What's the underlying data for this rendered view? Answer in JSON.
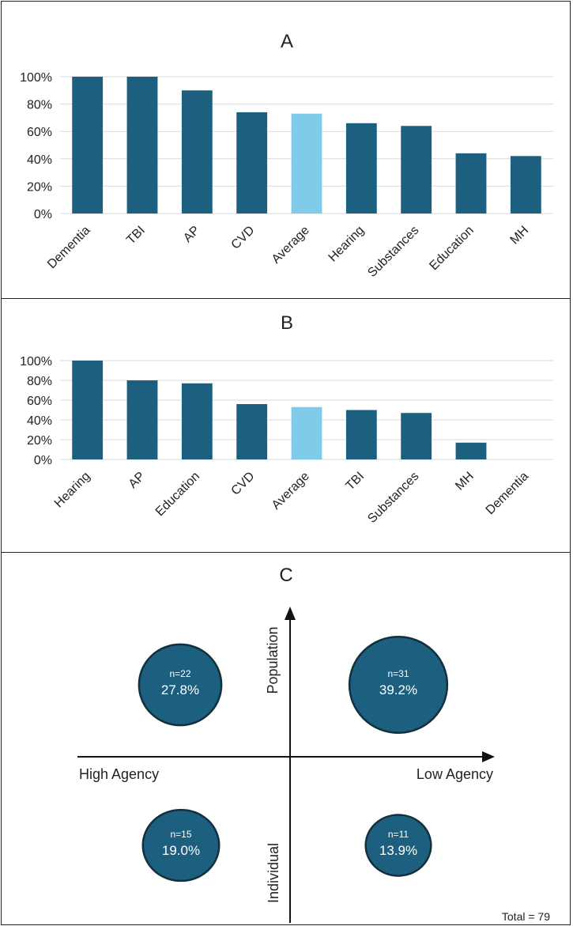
{
  "colors": {
    "bar": "#1c5f7e",
    "highlight": "#7fcbe9",
    "bubble": "#1c5f7e",
    "bubble_edge": "#12303d",
    "axis": "#111111"
  },
  "chart_data": [
    {
      "panel": "A",
      "type": "bar",
      "title": "A",
      "categories": [
        "Dementia",
        "TBI",
        "AP",
        "CVD",
        "Average",
        "Hearing",
        "Substances",
        "Education",
        "MH"
      ],
      "values": [
        100,
        100,
        90,
        74,
        73,
        66,
        64,
        44,
        42
      ],
      "highlight": "Average",
      "ylim": [
        0,
        100
      ],
      "yticks": [
        "0%",
        "20%",
        "40%",
        "60%",
        "80%",
        "100%"
      ],
      "grid": true,
      "xlabel": "",
      "ylabel": ""
    },
    {
      "panel": "B",
      "type": "bar",
      "title": "B",
      "categories": [
        "Hearing",
        "AP",
        "Education",
        "CVD",
        "Average",
        "TBI",
        "Substances",
        "MH",
        "Dementia"
      ],
      "values": [
        100,
        80,
        77,
        56,
        53,
        50,
        47,
        17,
        0
      ],
      "highlight": "Average",
      "ylim": [
        0,
        100
      ],
      "yticks": [
        "0%",
        "20%",
        "40%",
        "60%",
        "80%",
        "100%"
      ],
      "grid": true,
      "xlabel": "",
      "ylabel": ""
    },
    {
      "panel": "C",
      "type": "scatter",
      "title": "C",
      "x_axis": {
        "left_label": "High Agency",
        "right_label": "Low Agency"
      },
      "y_axis": {
        "top_label": "Population",
        "bottom_label": "Individual"
      },
      "bubbles": [
        {
          "quadrant": "top-left",
          "n": "n=22",
          "percent": "27.8%",
          "value": 22
        },
        {
          "quadrant": "top-right",
          "n": "n=31",
          "percent": "39.2%",
          "value": 31
        },
        {
          "quadrant": "bottom-left",
          "n": "n=15",
          "percent": "19.0%",
          "value": 15
        },
        {
          "quadrant": "bottom-right",
          "n": "n=11",
          "percent": "13.9%",
          "value": 11
        }
      ],
      "total": "Total = 79"
    }
  ]
}
